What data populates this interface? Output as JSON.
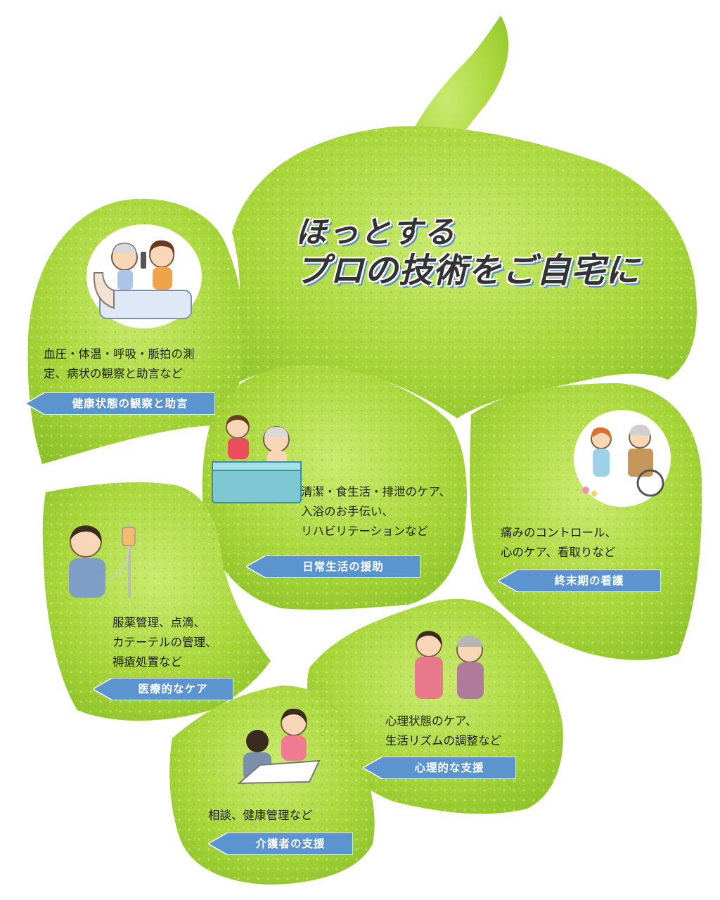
{
  "title": {
    "line1": "ほっとする",
    "line2": "プロの技術をご自宅に"
  },
  "colors": {
    "leaf": "#a8d63a",
    "leaf_light": "#c7e86b",
    "leaf_dark": "#86bb22",
    "tag_fill": "#5b94cf",
    "title_shadow": "#5b8fc9"
  },
  "services": [
    {
      "id": "health",
      "label": "健康状態の観察と助言",
      "lines": [
        "血圧・体温・呼吸・脈拍の測",
        "定、病状の観察と助言など"
      ],
      "icon": "nurse-and-patient-in-bed-illustration"
    },
    {
      "id": "daily",
      "label": "日常生活の援助",
      "lines": [
        "清潔・食生活・排泄のケア、",
        "入浴のお手伝い、",
        "リハビリテーションなど"
      ],
      "icon": "bathing-assistance-illustration"
    },
    {
      "id": "terminal",
      "label": "終末期の看護",
      "lines": [
        "痛みのコントロール、",
        "心のケア、看取りなど"
      ],
      "icon": "wheelchair-care-illustration"
    },
    {
      "id": "medical",
      "label": "医療的なケア",
      "lines": [
        "服薬管理、点滴、",
        "カテーテルの管理、",
        "褥瘡処置など"
      ],
      "icon": "iv-drip-patient-illustration"
    },
    {
      "id": "psych",
      "label": "心理的な支援",
      "lines": [
        "心理状態のケア、",
        "生活リズムの調整など"
      ],
      "icon": "caregiver-and-elder-illustration"
    },
    {
      "id": "carer",
      "label": "介護者の支援",
      "lines": [
        "相談、健康管理など"
      ],
      "icon": "consultation-illustration"
    }
  ]
}
